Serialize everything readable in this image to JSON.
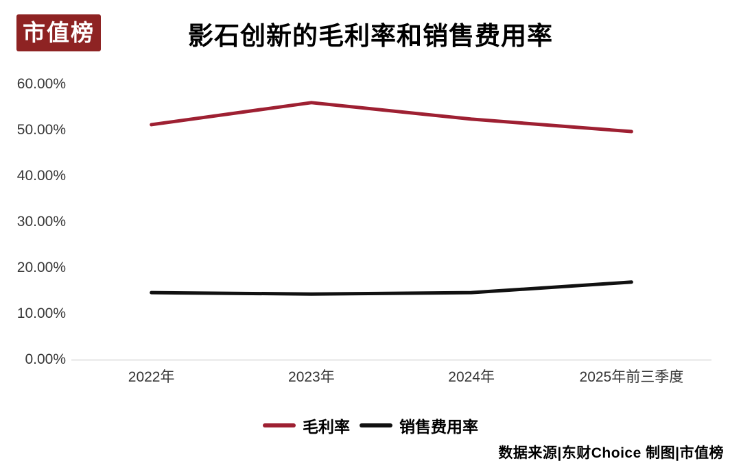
{
  "logo": {
    "text": "市值榜",
    "bg_color": "#8e2323",
    "text_color": "#ffffff"
  },
  "title": "影石创新的毛利率和销售费用率",
  "source_note": "数据来源|东财Choice  制图|市值榜",
  "chart_data": {
    "type": "line",
    "categories": [
      "2022年",
      "2023年",
      "2024年",
      "2025年前三季度"
    ],
    "series": [
      {
        "name": "毛利率",
        "color": "#9e2032",
        "values": [
          51.2,
          56.0,
          52.4,
          49.7
        ]
      },
      {
        "name": "销售费用率",
        "color": "#111111",
        "values": [
          14.6,
          14.3,
          14.6,
          16.9
        ]
      }
    ],
    "ylim": [
      0,
      60
    ],
    "ytick_step": 10,
    "yticks": [
      "0.00%",
      "10.00%",
      "20.00%",
      "30.00%",
      "40.00%",
      "50.00%",
      "60.00%"
    ],
    "grid": false,
    "axis_color": "#d9d9d9",
    "legend_position": "bottom"
  }
}
